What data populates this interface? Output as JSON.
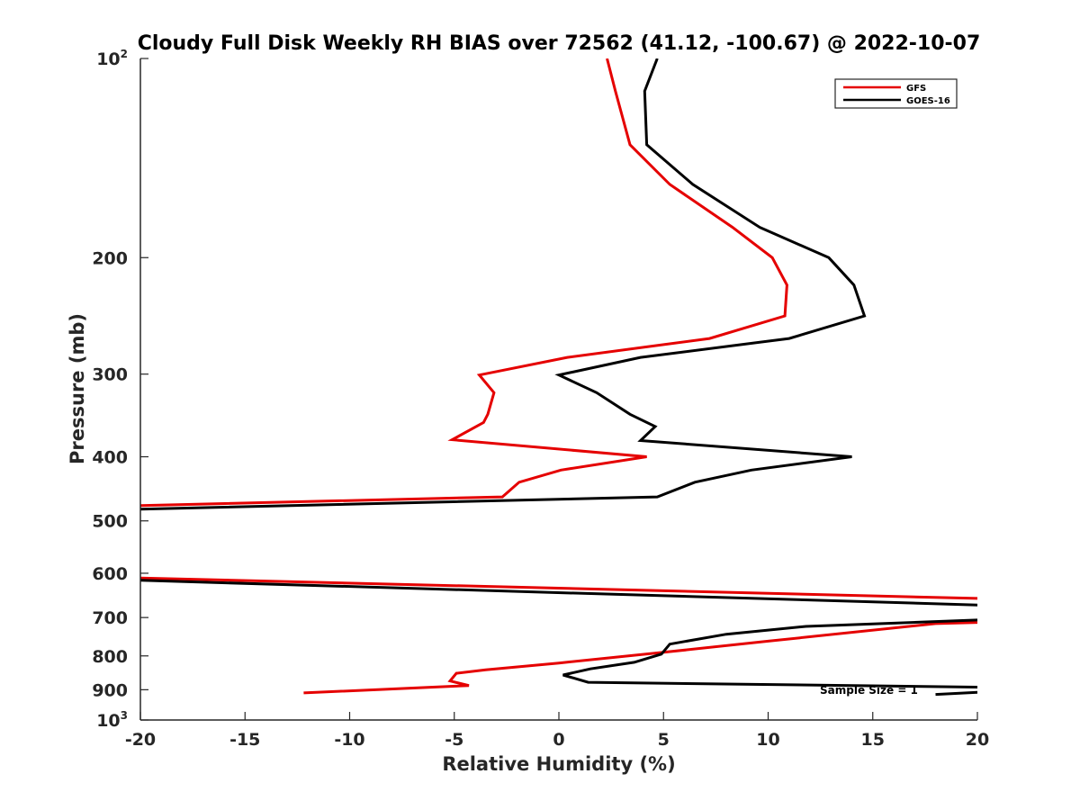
{
  "chart_data": {
    "type": "line",
    "title": "Cloudy Full Disk Weekly RH BIAS over 72562 (41.12, -100.67) @ 2022-10-07",
    "xlabel": "Relative Humidity (%)",
    "ylabel": "Pressure (mb)",
    "xlim": [
      -20,
      20
    ],
    "ylim": [
      100,
      1000
    ],
    "y_scale": "log",
    "y_reversed": true,
    "x_ticks": [
      "-20",
      "-15",
      "-10",
      "-5",
      "0",
      "5",
      "10",
      "15",
      "20"
    ],
    "y_ticks": [
      {
        "value": 100,
        "base": "10",
        "exp": "2"
      },
      {
        "value": 200,
        "label": "200"
      },
      {
        "value": 300,
        "label": "300"
      },
      {
        "value": 400,
        "label": "400"
      },
      {
        "value": 500,
        "label": "500"
      },
      {
        "value": 600,
        "label": "600"
      },
      {
        "value": 700,
        "label": "700"
      },
      {
        "value": 800,
        "label": "800"
      },
      {
        "value": 900,
        "label": "900"
      },
      {
        "value": 1000,
        "base": "10",
        "exp": "3"
      }
    ],
    "legend_position": "top-right",
    "annotation": "Sample Size = 1",
    "series": [
      {
        "name": "GFS",
        "color": "#e50000",
        "points": [
          [
            2.3,
            100
          ],
          [
            2.7,
            112
          ],
          [
            3.4,
            135
          ],
          [
            5.3,
            155
          ],
          [
            8.3,
            180
          ],
          [
            10.2,
            200
          ],
          [
            10.9,
            220
          ],
          [
            10.8,
            245
          ],
          [
            7.2,
            265
          ],
          [
            0.4,
            283
          ],
          [
            -3.8,
            301
          ],
          [
            -3.1,
            320
          ],
          [
            -3.4,
            345
          ],
          [
            -3.6,
            355
          ],
          [
            -5.1,
            377
          ],
          [
            4.2,
            400
          ],
          [
            0.1,
            419
          ],
          [
            -1.9,
            437
          ],
          [
            -2.7,
            460
          ],
          [
            -20,
            474
          ]
        ]
      },
      {
        "name": "GOES-16",
        "color": "#000000",
        "points": [
          [
            4.7,
            100
          ],
          [
            4.1,
            112
          ],
          [
            4.2,
            135
          ],
          [
            6.4,
            155
          ],
          [
            9.6,
            180
          ],
          [
            12.9,
            200
          ],
          [
            14.1,
            220
          ],
          [
            14.6,
            245
          ],
          [
            11.0,
            265
          ],
          [
            3.9,
            283
          ],
          [
            0,
            301
          ],
          [
            1.8,
            320
          ],
          [
            3.4,
            345
          ],
          [
            4.6,
            360
          ],
          [
            3.9,
            378
          ],
          [
            14.0,
            400
          ],
          [
            9.2,
            419
          ],
          [
            6.5,
            437
          ],
          [
            4.7,
            460
          ],
          [
            -20,
            480
          ]
        ]
      }
    ]
  }
}
